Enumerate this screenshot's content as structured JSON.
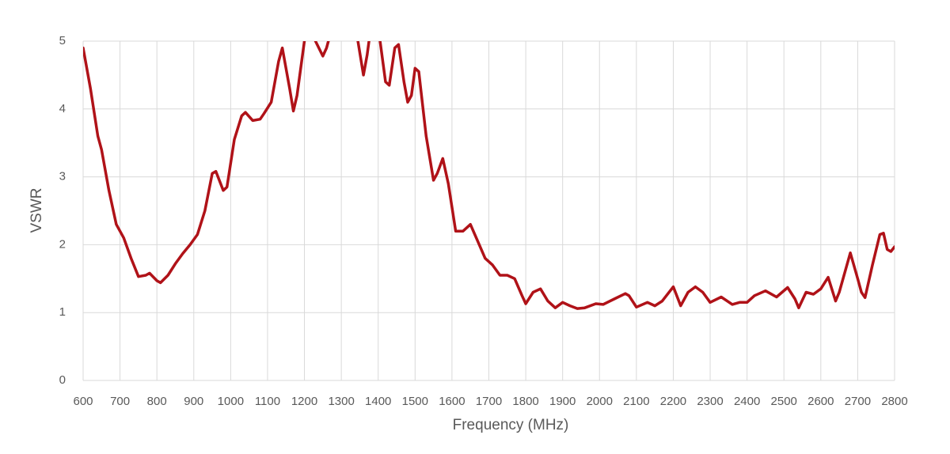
{
  "chart_data": {
    "type": "line",
    "x_label": "Frequency (MHz)",
    "y_label": "VSWR",
    "x": [
      600,
      620,
      640,
      650,
      670,
      690,
      710,
      730,
      750,
      770,
      780,
      800,
      810,
      830,
      850,
      870,
      890,
      910,
      930,
      950,
      960,
      980,
      990,
      1010,
      1030,
      1040,
      1060,
      1080,
      1090,
      1110,
      1130,
      1140,
      1160,
      1170,
      1180,
      1200,
      1215,
      1230,
      1250,
      1260,
      1265,
      1300,
      1345,
      1360,
      1370,
      1375,
      1390,
      1405,
      1420,
      1430,
      1445,
      1455,
      1470,
      1480,
      1490,
      1500,
      1510,
      1530,
      1550,
      1560,
      1575,
      1590,
      1610,
      1630,
      1650,
      1670,
      1690,
      1710,
      1730,
      1750,
      1770,
      1790,
      1800,
      1820,
      1840,
      1860,
      1880,
      1900,
      1920,
      1940,
      1960,
      1990,
      2010,
      2040,
      2070,
      2080,
      2100,
      2130,
      2150,
      2170,
      2200,
      2220,
      2240,
      2260,
      2280,
      2300,
      2330,
      2360,
      2380,
      2400,
      2420,
      2450,
      2480,
      2510,
      2530,
      2540,
      2560,
      2580,
      2600,
      2620,
      2640,
      2650,
      2680,
      2700,
      2710,
      2720,
      2740,
      2760,
      2770,
      2780,
      2790,
      2800
    ],
    "series": [
      {
        "name": "VSWR",
        "color": "#b01218",
        "values": [
          4.9,
          4.3,
          3.6,
          3.4,
          2.8,
          2.3,
          2.1,
          1.8,
          1.53,
          1.55,
          1.58,
          1.47,
          1.44,
          1.55,
          1.72,
          1.87,
          2.0,
          2.15,
          2.5,
          3.05,
          3.08,
          2.8,
          2.85,
          3.55,
          3.9,
          3.95,
          3.83,
          3.85,
          3.93,
          4.1,
          4.7,
          4.9,
          4.3,
          3.97,
          4.2,
          5.0,
          null,
          5.0,
          4.78,
          4.9,
          5.0,
          null,
          5.0,
          4.5,
          4.8,
          5.0,
          null,
          5.0,
          4.4,
          4.35,
          4.9,
          4.95,
          4.4,
          4.1,
          4.2,
          4.6,
          4.55,
          3.6,
          2.95,
          3.05,
          3.27,
          2.9,
          2.2,
          2.2,
          2.3,
          2.05,
          1.8,
          1.7,
          1.55,
          1.55,
          1.5,
          1.25,
          1.13,
          1.3,
          1.35,
          1.17,
          1.07,
          1.15,
          1.1,
          1.06,
          1.07,
          1.13,
          1.12,
          1.2,
          1.28,
          1.25,
          1.08,
          1.15,
          1.1,
          1.17,
          1.38,
          1.1,
          1.3,
          1.38,
          1.3,
          1.15,
          1.23,
          1.12,
          1.15,
          1.15,
          1.25,
          1.32,
          1.23,
          1.37,
          1.2,
          1.07,
          1.3,
          1.27,
          1.35,
          1.52,
          1.17,
          1.3,
          1.88,
          1.5,
          1.3,
          1.22,
          1.7,
          2.15,
          2.17,
          1.93,
          1.9,
          1.97
        ]
      }
    ],
    "xlim": [
      600,
      2800
    ],
    "ylim": [
      0,
      5
    ],
    "xticks": [
      600,
      700,
      800,
      900,
      1000,
      1100,
      1200,
      1300,
      1400,
      1500,
      1600,
      1700,
      1800,
      1900,
      2000,
      2100,
      2200,
      2300,
      2400,
      2500,
      2600,
      2700,
      2800
    ],
    "yticks": [
      0,
      1,
      2,
      3,
      4,
      5
    ],
    "grid": true
  }
}
